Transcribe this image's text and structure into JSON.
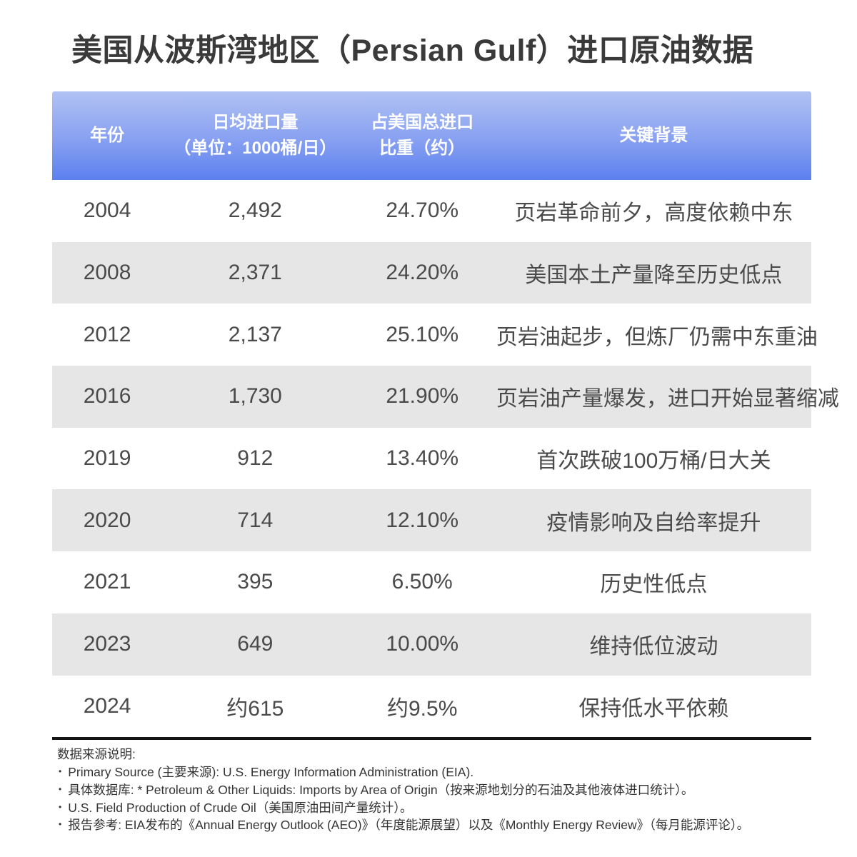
{
  "page": {
    "title": "美国从波斯湾地区（Persian Gulf）进口原油数据"
  },
  "table": {
    "columns": [
      {
        "line1": "年份",
        "line2": ""
      },
      {
        "line1": "日均进口量",
        "line2": "（单位：1000桶/日）"
      },
      {
        "line1": "占美国总进口",
        "line2": "比重（约）"
      },
      {
        "line1": "关键背景",
        "line2": ""
      }
    ],
    "rows": [
      {
        "year": "2004",
        "volume": "2,492",
        "share": "24.70%",
        "context": "页岩革命前夕，高度依赖中东"
      },
      {
        "year": "2008",
        "volume": "2,371",
        "share": "24.20%",
        "context": "美国本土产量降至历史低点"
      },
      {
        "year": "2012",
        "volume": "2,137",
        "share": "25.10%",
        "context": "页岩油起步，但炼厂仍需中东重油"
      },
      {
        "year": "2016",
        "volume": "1,730",
        "share": "21.90%",
        "context": "页岩油产量爆发，进口开始显著缩减"
      },
      {
        "year": "2019",
        "volume": "912",
        "share": "13.40%",
        "context": "首次跌破100万桶/日大关"
      },
      {
        "year": "2020",
        "volume": "714",
        "share": "12.10%",
        "context": "疫情影响及自给率提升"
      },
      {
        "year": "2021",
        "volume": "395",
        "share": "6.50%",
        "context": "历史性低点"
      },
      {
        "year": "2023",
        "volume": "649",
        "share": "10.00%",
        "context": "维持低位波动"
      },
      {
        "year": "2024",
        "volume": "约615",
        "share": "约9.5%",
        "context": "保持低水平依赖"
      }
    ]
  },
  "footer": {
    "heading": "数据来源说明:",
    "bullet": "•",
    "notes": [
      "Primary Source (主要来源): U.S. Energy Information Administration (EIA).",
      "具体数据库: * Petroleum & Other Liquids: Imports by Area of Origin（按来源地划分的石油及其他液体进口统计）。",
      "U.S. Field Production of Crude Oil（美国原油田间产量统计）。",
      "报告参考: EIA发布的《Annual Energy Outlook (AEO)》（年度能源展望）以及《Monthly Energy Review》（每月能源评论）。"
    ]
  },
  "colors": {
    "header_gradient_top": "#b1c2f3",
    "header_gradient_bottom": "#5c80ef",
    "header_text": "#ffffff",
    "row_alt_background": "#e6e6e6",
    "row_background": "#ffffff",
    "row_text": "#4a4a4a",
    "title_text": "#3a3a3a",
    "table_bottom_border": "#151515",
    "footer_text": "#333333"
  },
  "chart_data": {
    "type": "table",
    "title": "美国从波斯湾地区（Persian Gulf）进口原油数据",
    "columns": [
      "年份",
      "日均进口量（单位：1000桶/日）",
      "占美国总进口比重（约）",
      "关键背景"
    ],
    "rows": [
      [
        "2004",
        "2,492",
        "24.70%",
        "页岩革命前夕，高度依赖中东"
      ],
      [
        "2008",
        "2,371",
        "24.20%",
        "美国本土产量降至历史低点"
      ],
      [
        "2012",
        "2,137",
        "25.10%",
        "页岩油起步，但炼厂仍需中东重油"
      ],
      [
        "2016",
        "1,730",
        "21.90%",
        "页岩油产量爆发，进口开始显著缩减"
      ],
      [
        "2019",
        "912",
        "13.40%",
        "首次跌破100万桶/日大关"
      ],
      [
        "2020",
        "714",
        "12.10%",
        "疫情影响及自给率提升"
      ],
      [
        "2021",
        "395",
        "6.50%",
        "历史性低点"
      ],
      [
        "2023",
        "649",
        "10.00%",
        "维持低位波动"
      ],
      [
        "2024",
        "约615",
        "约9.5%",
        "保持低水平依赖"
      ]
    ],
    "years": [
      2004,
      2008,
      2012,
      2016,
      2019,
      2020,
      2021,
      2023,
      2024
    ],
    "avg_daily_imports_kbd": [
      2492,
      2371,
      2137,
      1730,
      912,
      714,
      395,
      649,
      615
    ],
    "share_of_total_us_imports_pct": [
      24.7,
      24.2,
      25.1,
      21.9,
      13.4,
      12.1,
      6.5,
      10.0,
      9.5
    ]
  }
}
